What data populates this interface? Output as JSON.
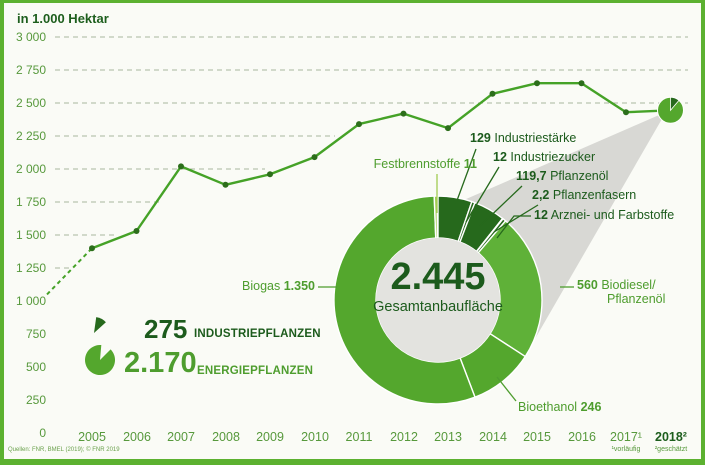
{
  "title": "in 1.000 Hektar",
  "colors": {
    "frame_border": "#5cb130",
    "background": "#fafbf6",
    "line": "#45a227",
    "dot": "#2c6e1b",
    "grid": "#a8b79e",
    "text_medium_green": "#4e9d2e",
    "text_dark_green": "#1c5b1c",
    "donut_medium": "#54a72d",
    "donut_medium_light": "#5fb138",
    "donut_dark": "#26691c",
    "donut_light": "#a2cc52",
    "center_circle": "#e3e3df",
    "callout_wedge": "#d8d8d4"
  },
  "axis": {
    "y_ticks": [
      "3 000",
      "2 750",
      "2 500",
      "2 250",
      "2 000",
      "1 750",
      "1 500",
      "1 250",
      "1 000",
      "750",
      "500",
      "250",
      "0"
    ],
    "x_labels": [
      "2005",
      "2006",
      "2007",
      "2008",
      "2009",
      "2010",
      "2011",
      "2012",
      "2013",
      "2014",
      "2015",
      "2016",
      "2017¹",
      "2018²"
    ],
    "footnote_2017": "¹vorläufig",
    "footnote_2018": "²geschätzt"
  },
  "source": "Quellen: FNR, BMEL (2019); © FNR 2019",
  "legend": {
    "industriepflanzen": {
      "value": "275",
      "label": "INDUSTRIEPFLANZEN"
    },
    "energiepflanzen": {
      "value": "2.170",
      "label": "ENERGIEPFLANZEN"
    }
  },
  "center": {
    "total": "2.445",
    "label": "Gesamtanbaufläche"
  },
  "donut_labels": {
    "festbrennstoffe": {
      "name": "Festbrennstoffe",
      "value": "11"
    },
    "industriestaerke": {
      "value": "129",
      "name": "Industriestärke"
    },
    "industriezucker": {
      "value": "12",
      "name": "Industriezucker"
    },
    "pflanzenoel": {
      "value": "119,7",
      "name": "Pflanzenöl"
    },
    "pflanzenfasern": {
      "value": "2,2",
      "name": "Pflanzenfasern"
    },
    "arznei": {
      "value": "12",
      "name": "Arznei- und Farbstoffe"
    },
    "biodiesel": {
      "value": "560",
      "name_line1": "Biodiesel/",
      "name_line2": "Pflanzenöl"
    },
    "bioethanol": {
      "name": "Bioethanol",
      "value": "246"
    },
    "biogas": {
      "name": "Biogas",
      "value": "1.350"
    }
  },
  "chart_data": [
    {
      "type": "line",
      "title": "",
      "ylabel": "in 1.000 Hektar",
      "x": [
        "2005",
        "2006",
        "2007",
        "2008",
        "2009",
        "2010",
        "2011",
        "2012",
        "2013",
        "2014",
        "2015",
        "2016",
        "2017",
        "2018"
      ],
      "values": [
        1400,
        1530,
        2020,
        1880,
        1960,
        2090,
        2340,
        2420,
        2310,
        2570,
        2650,
        2650,
        2430,
        2445
      ],
      "lead_in": {
        "style": "dashed",
        "start_value": 1050,
        "note": "dashed segment entering from left edge up to 2005"
      },
      "ylim": [
        0,
        3000
      ],
      "y_tick_step": 250,
      "grid": "dashed horizontal",
      "annotations": {
        "2017": "vorläufig",
        "2018": "geschätzt",
        "last_point_marker": "mini pie chart"
      }
    },
    {
      "type": "pie",
      "subtype": "donut",
      "total": 2445,
      "total_label": "Gesamtanbaufläche",
      "unit": "1.000 Hektar",
      "segments": [
        {
          "key": "industriestaerke",
          "label": "Industriestärke",
          "value": 129,
          "group": "Industriepflanzen",
          "color_role": "dark"
        },
        {
          "key": "industriezucker",
          "label": "Industriezucker",
          "value": 12,
          "group": "Industriepflanzen",
          "color_role": "dark"
        },
        {
          "key": "pflanzenoel",
          "label": "Pflanzenöl",
          "value": 119.7,
          "group": "Industriepflanzen",
          "color_role": "dark"
        },
        {
          "key": "pflanzenfasern",
          "label": "Pflanzenfasern",
          "value": 2.2,
          "group": "Industriepflanzen",
          "color_role": "dark"
        },
        {
          "key": "arznei",
          "label": "Arznei- und Farbstoffe",
          "value": 12,
          "group": "Industriepflanzen",
          "color_role": "dark"
        },
        {
          "key": "biodiesel",
          "label": "Biodiesel/Pflanzenöl",
          "value": 560,
          "group": "Energiepflanzen",
          "color_role": "medium_light"
        },
        {
          "key": "bioethanol",
          "label": "Bioethanol",
          "value": 246,
          "group": "Energiepflanzen",
          "color_role": "medium"
        },
        {
          "key": "biogas",
          "label": "Biogas",
          "value": 1350,
          "group": "Energiepflanzen",
          "color_role": "medium"
        },
        {
          "key": "festbrennstoffe",
          "label": "Festbrennstoffe",
          "value": 11,
          "group": "Energiepflanzen",
          "color_role": "light"
        }
      ],
      "groups": [
        {
          "label": "Industriepflanzen",
          "value": 275
        },
        {
          "label": "Energiepflanzen",
          "value": 2170
        }
      ]
    }
  ]
}
